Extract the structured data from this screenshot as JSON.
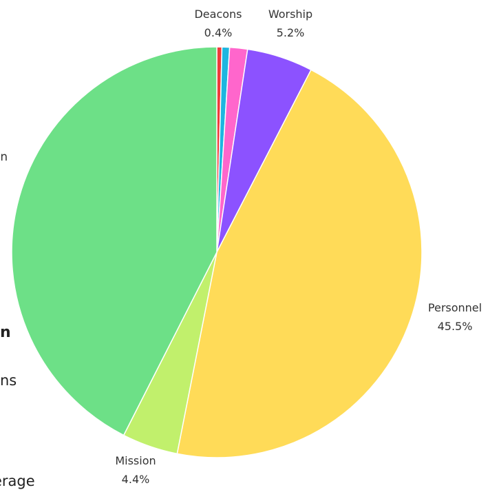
{
  "chart_data": {
    "type": "pie",
    "start": "top",
    "direction": "clockwise",
    "slices": [
      {
        "label": "Deacons",
        "value": 0.4,
        "pct_label": "0.4%",
        "color": "#ef3b3b",
        "show_label": true
      },
      {
        "label": "",
        "value": 0.6,
        "pct_label": "",
        "color": "#1eb6e0",
        "show_label": false
      },
      {
        "label": "",
        "value": 1.4,
        "pct_label": "",
        "color": "#ff66cc",
        "show_label": false
      },
      {
        "label": "Worship",
        "value": 5.2,
        "pct_label": "5.2%",
        "color": "#8c52ff",
        "show_label": true
      },
      {
        "label": "Personnel",
        "value": 45.5,
        "pct_label": "45.5%",
        "color": "#ffdb58",
        "show_label": true
      },
      {
        "label": "Mission",
        "value": 4.4,
        "pct_label": "4.4%",
        "color": "#c1f06c",
        "show_label": true
      },
      {
        "label": "",
        "value": 42.5,
        "pct_label": "",
        "color": "#6de087",
        "show_label": false
      }
    ]
  },
  "page_text": {
    "fragment_1": "on",
    "fragment_2": "n",
    "fragment_3": "ns",
    "fragment_4": "erage"
  }
}
